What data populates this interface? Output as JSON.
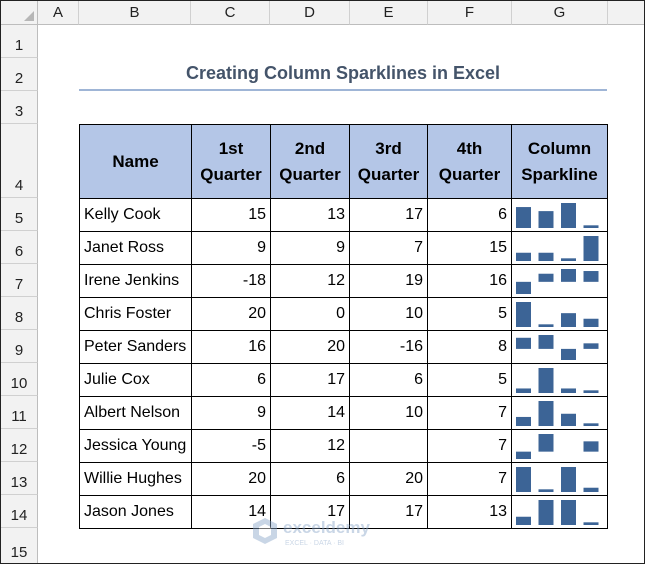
{
  "columns": [
    "A",
    "B",
    "C",
    "D",
    "E",
    "F",
    "G"
  ],
  "rows": [
    "1",
    "2",
    "3",
    "4",
    "5",
    "6",
    "7",
    "8",
    "9",
    "10",
    "11",
    "12",
    "13",
    "14",
    "15"
  ],
  "title": "Creating Column Sparklines in Excel",
  "headers": [
    "Name",
    "1st\nQuarter",
    "2nd\nQuarter",
    "3rd\nQuarter",
    "4th\nQuarter",
    "Column\nSparkline"
  ],
  "records": [
    {
      "name": "Kelly Cook",
      "q": [
        15,
        13,
        17,
        6
      ]
    },
    {
      "name": "Janet Ross",
      "q": [
        9,
        9,
        7,
        15
      ]
    },
    {
      "name": "Irene Jenkins",
      "q": [
        -18,
        12,
        19,
        16
      ]
    },
    {
      "name": "Chris Foster",
      "q": [
        20,
        0,
        10,
        5
      ]
    },
    {
      "name": "Peter Sanders",
      "q": [
        16,
        20,
        -16,
        8
      ]
    },
    {
      "name": "Julie Cox",
      "q": [
        6,
        17,
        6,
        5
      ]
    },
    {
      "name": "Albert Nelson",
      "q": [
        9,
        14,
        10,
        7
      ]
    },
    {
      "name": "Jessica Young",
      "q": [
        -5,
        12,
        null,
        7
      ]
    },
    {
      "name": "Willie Hughes",
      "q": [
        20,
        6,
        20,
        7
      ]
    },
    {
      "name": "Jason Jones",
      "q": [
        14,
        17,
        17,
        13
      ]
    }
  ],
  "colors": {
    "sparkline": "#3c6496",
    "header_fill": "#b4c6e7",
    "title": "#44546a"
  },
  "watermark": {
    "brand": "exceldemy",
    "tagline": "EXCEL · DATA · BI"
  }
}
